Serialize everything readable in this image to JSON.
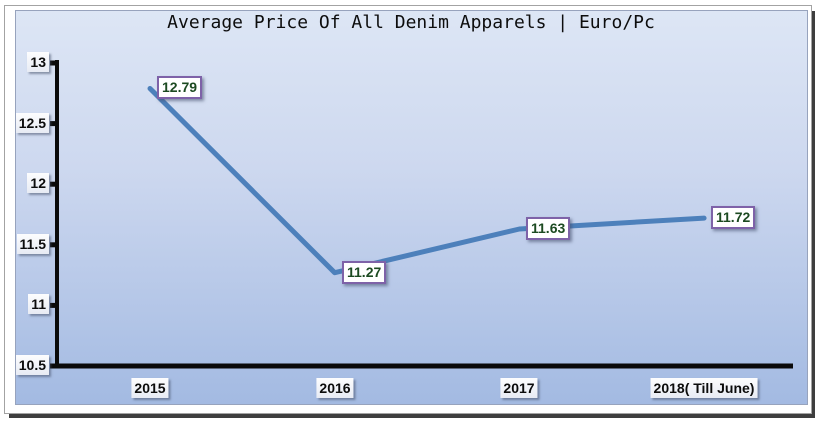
{
  "chart_data": {
    "type": "line",
    "title": "Average Price Of All Denim Apparels | Euro/Pc",
    "categories": [
      "2015",
      "2016",
      "2017",
      "2018( Till June)"
    ],
    "values": [
      12.79,
      11.27,
      11.63,
      11.72
    ],
    "data_labels": [
      "12.79",
      "11.27",
      "11.63",
      "11.72"
    ],
    "yticks": [
      13,
      12.5,
      12,
      11.5,
      11,
      10.5
    ],
    "ytick_labels": [
      "13",
      "12.5",
      "12",
      "11.5",
      "11",
      "10.5"
    ],
    "ylim": [
      10.5,
      13
    ],
    "xlabel": "",
    "ylabel": "",
    "grid": false,
    "legend": "none",
    "line_color": "#4d80bb",
    "axis_color": "#0a0a0a",
    "data_label_text_color": "#1c4a21",
    "data_label_border_color": "#7e62a8",
    "panel_gradient_top": "#dde6f5",
    "panel_gradient_bottom": "#a3bae2"
  }
}
